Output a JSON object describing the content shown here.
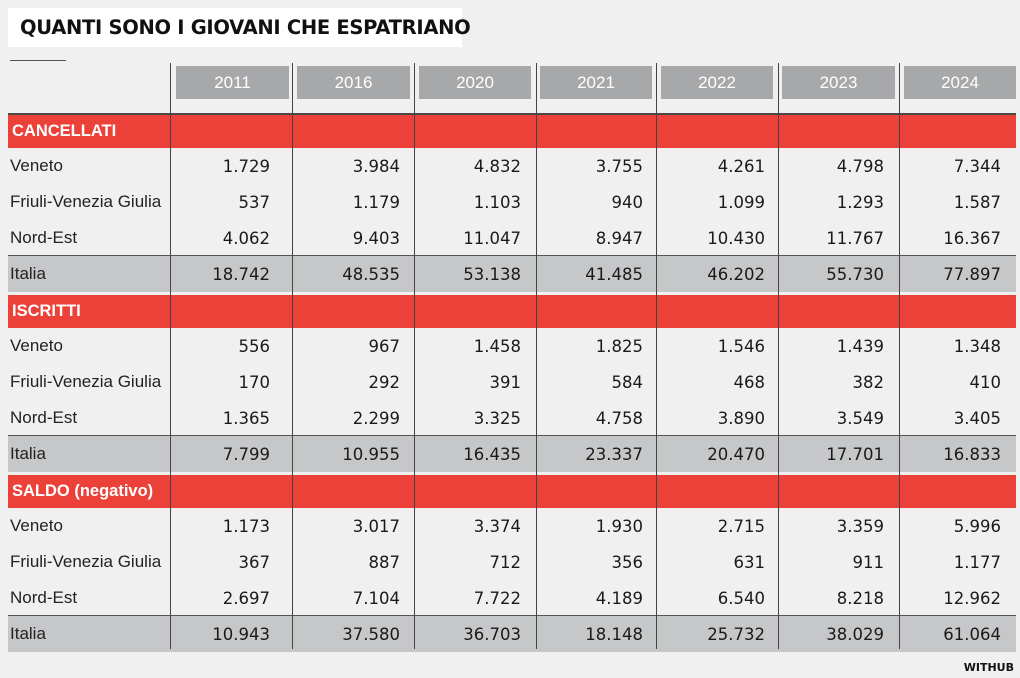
{
  "title": "QUANTI SONO I GIOVANI CHE ESPATRIANO",
  "source": "WITHUB",
  "colors": {
    "section": "#ec4138",
    "year_header": "#a7a8aa",
    "total_row": "#c6c7c9",
    "background": "#f0f0f1"
  },
  "chart_data": {
    "type": "table",
    "title": "QUANTI SONO I GIOVANI CHE ESPATRIANO",
    "columns": [
      "2011",
      "2016",
      "2020",
      "2021",
      "2022",
      "2023",
      "2024"
    ],
    "sections": [
      {
        "name": "CANCELLATI",
        "rows": [
          {
            "label": "Veneto",
            "values": [
              "1.729",
              "3.984",
              "4.832",
              "3.755",
              "4.261",
              "4.798",
              "7.344"
            ]
          },
          {
            "label": "Friuli-Venezia Giulia",
            "values": [
              "537",
              "1.179",
              "1.103",
              "940",
              "1.099",
              "1.293",
              "1.587"
            ]
          },
          {
            "label": "Nord-Est",
            "values": [
              "4.062",
              "9.403",
              "11.047",
              "8.947",
              "10.430",
              "11.767",
              "16.367"
            ]
          },
          {
            "label": "Italia",
            "values": [
              "18.742",
              "48.535",
              "53.138",
              "41.485",
              "46.202",
              "55.730",
              "77.897"
            ]
          }
        ]
      },
      {
        "name": "ISCRITTI",
        "rows": [
          {
            "label": "Veneto",
            "values": [
              "556",
              "967",
              "1.458",
              "1.825",
              "1.546",
              "1.439",
              "1.348"
            ]
          },
          {
            "label": "Friuli-Venezia Giulia",
            "values": [
              "170",
              "292",
              "391",
              "584",
              "468",
              "382",
              "410"
            ]
          },
          {
            "label": "Nord-Est",
            "values": [
              "1.365",
              "2.299",
              "3.325",
              "4.758",
              "3.890",
              "3.549",
              "3.405"
            ]
          },
          {
            "label": "Italia",
            "values": [
              "7.799",
              "10.955",
              "16.435",
              "23.337",
              "20.470",
              "17.701",
              "16.833"
            ]
          }
        ]
      },
      {
        "name": "SALDO (negativo)",
        "rows": [
          {
            "label": "Veneto",
            "values": [
              "1.173",
              "3.017",
              "3.374",
              "1.930",
              "2.715",
              "3.359",
              "5.996"
            ]
          },
          {
            "label": "Friuli-Venezia Giulia",
            "values": [
              "367",
              "887",
              "712",
              "356",
              "631",
              "911",
              "1.177"
            ]
          },
          {
            "label": "Nord-Est",
            "values": [
              "2.697",
              "7.104",
              "7.722",
              "4.189",
              "6.540",
              "8.218",
              "12.962"
            ]
          },
          {
            "label": "Italia",
            "values": [
              "10.943",
              "37.580",
              "36.703",
              "18.148",
              "25.732",
              "38.029",
              "61.064"
            ]
          }
        ]
      }
    ]
  }
}
